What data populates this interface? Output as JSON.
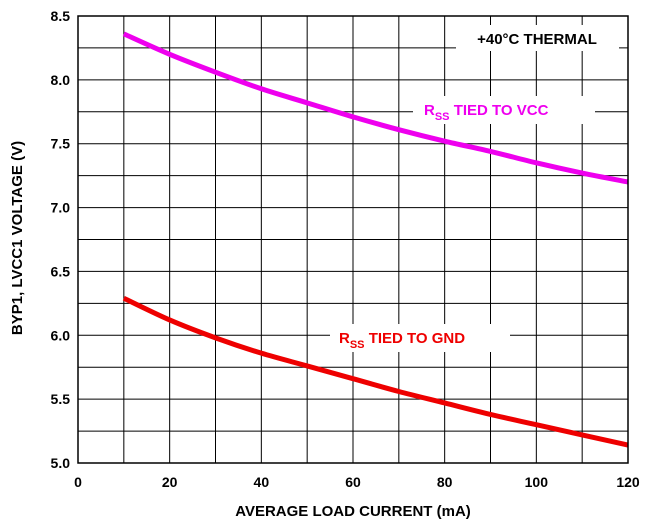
{
  "chart_data": {
    "type": "line",
    "xlabel": "AVERAGE LOAD CURRENT (mA)",
    "ylabel": "BYP1, LVCC1 VOLTAGE (V)",
    "xlim": [
      0,
      120
    ],
    "ylim": [
      5.0,
      8.5
    ],
    "xticks": [
      0,
      20,
      40,
      60,
      80,
      100,
      120
    ],
    "xtick_labels": [
      "0",
      "20",
      "40",
      "60",
      "80",
      "100",
      "120"
    ],
    "yticks": [
      5.0,
      5.5,
      6.0,
      6.5,
      7.0,
      7.5,
      8.0,
      8.5
    ],
    "ytick_labels": [
      "5.0",
      "5.5",
      "6.0",
      "6.5",
      "7.0",
      "7.5",
      "8.0",
      "8.5"
    ],
    "grid": true,
    "annotations": [
      {
        "text": "+40°C THERMAL"
      }
    ],
    "series": [
      {
        "name_main": "R",
        "name_sub": "SS",
        "name_rest": " TIED TO VCC",
        "color": "#ee00ee",
        "x": [
          10,
          20,
          30,
          40,
          50,
          60,
          70,
          80,
          90,
          100,
          110,
          120
        ],
        "y": [
          8.36,
          8.2,
          8.06,
          7.93,
          7.82,
          7.71,
          7.61,
          7.52,
          7.44,
          7.35,
          7.27,
          7.2
        ]
      },
      {
        "name_main": "R",
        "name_sub": "SS",
        "name_rest": " TIED TO GND",
        "color": "#ee0000",
        "x": [
          10,
          20,
          30,
          40,
          50,
          60,
          70,
          80,
          90,
          100,
          110,
          120
        ],
        "y": [
          6.29,
          6.12,
          5.98,
          5.86,
          5.76,
          5.66,
          5.56,
          5.47,
          5.38,
          5.3,
          5.22,
          5.14
        ]
      }
    ]
  }
}
